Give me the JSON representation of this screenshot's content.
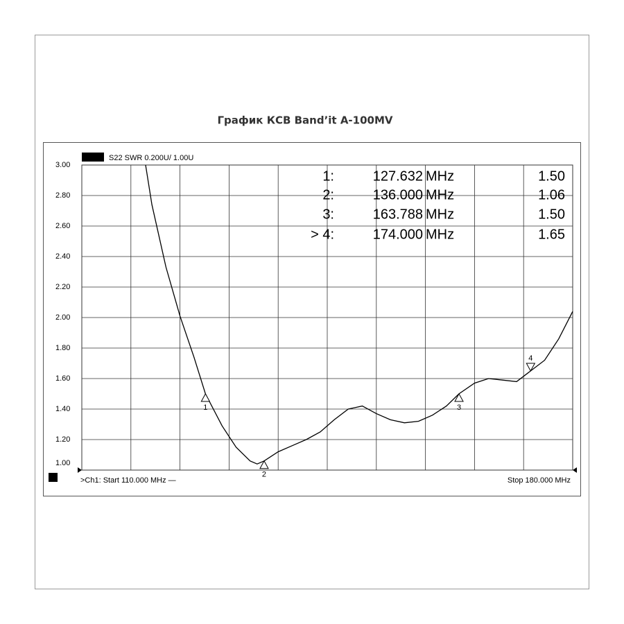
{
  "chart_data": {
    "type": "line",
    "title": "График КСВ  Band’it A-100MV",
    "trace_label": "S22 SWR 0.200U/  1.00U",
    "start_label": ">Ch1: Start  110.000 MHz  —",
    "stop_label": "Stop  180.000 MHz",
    "xlim": [
      110,
      180
    ],
    "xticks": [
      117,
      124,
      131,
      138,
      145,
      152,
      159,
      166,
      173
    ],
    "ylim": [
      1.0,
      3.0
    ],
    "yticks": [
      {
        "value": 1.0,
        "label": "1.00"
      },
      {
        "value": 1.2,
        "label": "1.20"
      },
      {
        "value": 1.4,
        "label": "1.40"
      },
      {
        "value": 1.6,
        "label": "1.60"
      },
      {
        "value": 1.8,
        "label": "1.80"
      },
      {
        "value": 2.0,
        "label": "2.00"
      },
      {
        "value": 2.2,
        "label": "2.20"
      },
      {
        "value": 2.4,
        "label": "2.40"
      },
      {
        "value": 2.6,
        "label": "2.60"
      },
      {
        "value": 2.8,
        "label": "2.80"
      },
      {
        "value": 3.0,
        "label": "3.00"
      }
    ],
    "grid": true,
    "series": [
      {
        "color": "#000000",
        "x": [
          119.1,
          120,
          122,
          124,
          126,
          127.632,
          130,
          132,
          134,
          135,
          136,
          138,
          140,
          142,
          144,
          146,
          148,
          150,
          152,
          154,
          156,
          158,
          160,
          162,
          163.788,
          166,
          168,
          170,
          172,
          174,
          176,
          178,
          180
        ],
        "values": [
          3.0,
          2.74,
          2.33,
          2.01,
          1.74,
          1.5,
          1.29,
          1.15,
          1.06,
          1.04,
          1.06,
          1.12,
          1.16,
          1.2,
          1.25,
          1.33,
          1.4,
          1.42,
          1.37,
          1.33,
          1.31,
          1.32,
          1.36,
          1.42,
          1.5,
          1.57,
          1.6,
          1.59,
          1.58,
          1.65,
          1.72,
          1.86,
          2.04
        ]
      }
    ],
    "markers": [
      {
        "id": "1",
        "table_label": "1:",
        "freq": {
          "value": 127.632,
          "label": "127.632"
        },
        "unit": "MHz",
        "swr": {
          "value": 1.5,
          "label": "1.50"
        },
        "direction": "up"
      },
      {
        "id": "2",
        "table_label": "2:",
        "freq": {
          "value": 136,
          "label": "136.000"
        },
        "unit": "MHz",
        "swr": {
          "value": 1.06,
          "label": "1.06"
        },
        "direction": "up"
      },
      {
        "id": "3",
        "table_label": "3:",
        "freq": {
          "value": 163.788,
          "label": "163.788"
        },
        "unit": "MHz",
        "swr": {
          "value": 1.5,
          "label": "1.50"
        },
        "direction": "up"
      },
      {
        "id": "4",
        "table_label": "> 4:",
        "freq": {
          "value": 174,
          "label": "174.000"
        },
        "unit": "MHz",
        "swr": {
          "value": 1.65,
          "label": "1.65"
        },
        "direction": "down"
      }
    ]
  }
}
